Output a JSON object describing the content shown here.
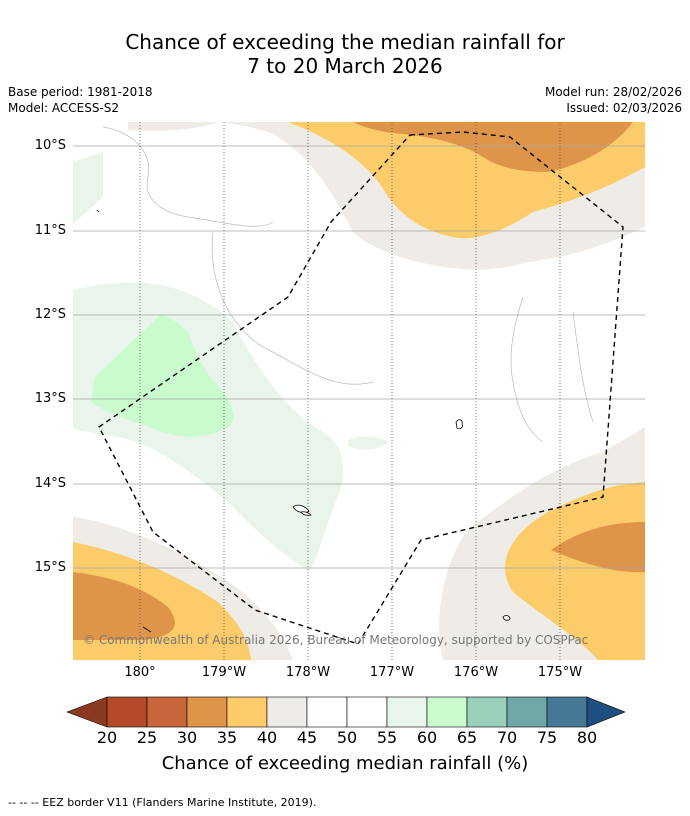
{
  "title": {
    "line1": "Chance of exceeding the median rainfall for",
    "line2": "7 to 20 March 2026"
  },
  "meta": {
    "base_period": "Base period: 1981-2018",
    "model": "Model: ACCESS-S2",
    "model_run": "Model run: 28/02/2026",
    "issued": "Issued: 02/03/2026"
  },
  "map": {
    "y_ticks": [
      "10°S",
      "11°S",
      "12°S",
      "13°S",
      "14°S",
      "15°S"
    ],
    "x_ticks": [
      "180°",
      "179°W",
      "178°W",
      "177°W",
      "176°W",
      "175°W"
    ],
    "copyright": "© Commonwealth of Australia 2026, Bureau of Meteorology, supported by COSPPac",
    "colors": {
      "c20": "#8b3a22",
      "c25": "#b5492a",
      "c30": "#c8653a",
      "c35": "#df9549",
      "c40": "#fdcc6a",
      "c45": "#efebe6",
      "c50": "#ffffff",
      "c55": "#ffffff",
      "c60": "#e9f4ea",
      "c65": "#c9fbcf",
      "c70": "#9bd0bb",
      "c75": "#6fa8a7",
      "c80": "#467995",
      "c85": "#1f4e80"
    }
  },
  "colorbar": {
    "ticks": [
      "20",
      "25",
      "30",
      "35",
      "40",
      "45",
      "50",
      "55",
      "60",
      "65",
      "70",
      "75",
      "80"
    ],
    "label": "Chance of exceeding median rainfall (%)"
  },
  "footer": "--  --  -- EEZ border V11 (Flanders Marine Institute, 2019)."
}
